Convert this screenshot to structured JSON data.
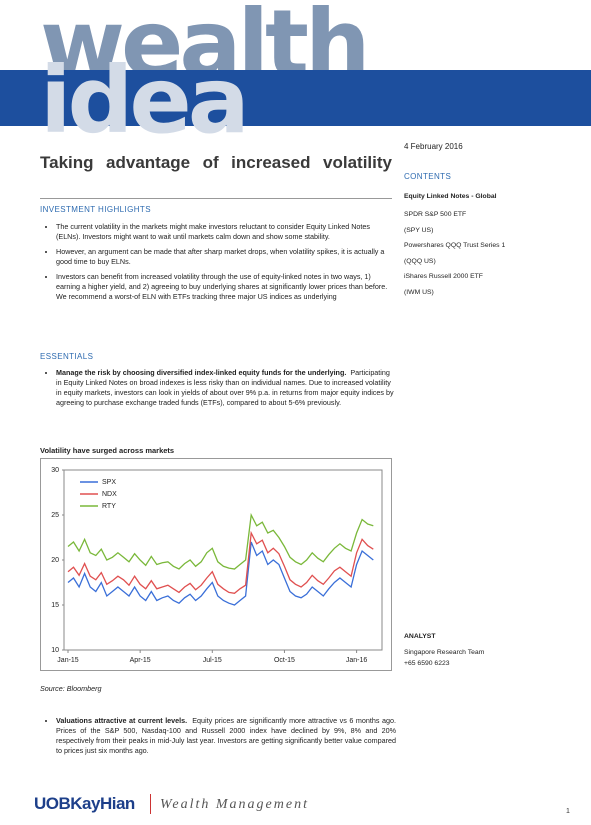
{
  "header": {
    "logo_top": "wealth",
    "logo_bottom": "idea",
    "date": "4 February 2016"
  },
  "title": "Taking advantage of increased volatility",
  "investment_highlights": {
    "heading": "INVESTMENT HIGHLIGHTS",
    "bullets": [
      "The current volatility in the markets might make investors reluctant to consider Equity Linked Notes (ELNs).  Investors might want to wait until markets calm down and show some stability.",
      "However, an argument can be made that after sharp market drops, when volatility spikes, it is actually a good time to buy ELNs.",
      "Investors can benefit from increased volatility through the use of equity-linked notes in two ways, 1) earning a higher yield, and 2) agreeing to buy underlying shares at significantly lower prices than before. We recommend a worst-of ELN with ETFs tracking three major US indices as underlying"
    ]
  },
  "essentials": {
    "heading": "ESSENTIALS",
    "items": [
      {
        "bold": "Manage the risk by choosing diversified index-linked equity funds for the underlying.",
        "text": "Participating in Equity Linked Notes on broad indexes is less risky than on individual names. Due to increased volatility in equity markets, investors can look in yields of about over 9% p.a. in returns from major equity indices by agreeing to purchase exchange traded funds (ETFs), compared to about 5-6% previously."
      },
      {
        "bold": "Valuations attractive at current levels.",
        "text": "Equity prices are significantly more attractive vs 6 months ago. Prices of the S&P 500, Nasdaq-100 and Russell 2000 index have declined by 9%, 8% and 20% respectively from their peaks in mid-July last year. Investors are getting significantly better value compared to prices just six months ago."
      }
    ]
  },
  "chart_data": {
    "type": "line",
    "title": "Volatility have surged across markets",
    "source": "Source: Bloomberg",
    "categories": [
      "Jan-15",
      null,
      null,
      null,
      null,
      null,
      null,
      null,
      null,
      null,
      null,
      null,
      null,
      "Apr-15",
      null,
      null,
      null,
      null,
      null,
      null,
      null,
      null,
      null,
      null,
      null,
      null,
      "Jul-15",
      null,
      null,
      null,
      null,
      null,
      null,
      null,
      null,
      null,
      null,
      null,
      null,
      "Oct-15",
      null,
      null,
      null,
      null,
      null,
      null,
      null,
      null,
      null,
      null,
      null,
      null,
      "Jan-16",
      null,
      null,
      null
    ],
    "ylim": [
      10,
      30
    ],
    "yticks": [
      10,
      15,
      20,
      25,
      30
    ],
    "grid": false,
    "legend": "upper-left",
    "series": [
      {
        "name": "SPX",
        "color": "#3a6fd8",
        "values": [
          17.5,
          18,
          17,
          18.5,
          17,
          16.5,
          17.5,
          16,
          16.5,
          17,
          16.5,
          16,
          17,
          16,
          15.5,
          16.5,
          15.5,
          15.8,
          16,
          15.5,
          15.2,
          15.8,
          16.2,
          15.5,
          16,
          16.8,
          17.5,
          16,
          15.5,
          15.2,
          15,
          15.5,
          16,
          22,
          20.5,
          21,
          19.5,
          20,
          19.5,
          18,
          16.5,
          16,
          15.8,
          16.2,
          17,
          16.5,
          16,
          16.8,
          17.5,
          18,
          17.5,
          17,
          19.5,
          21,
          20.5,
          20
        ]
      },
      {
        "name": "NDX",
        "color": "#e05050",
        "values": [
          18.7,
          19.2,
          18.3,
          19.6,
          18.2,
          17.8,
          18.6,
          17.3,
          17.7,
          18.2,
          17.8,
          17.2,
          18.2,
          17.3,
          16.8,
          17.7,
          16.8,
          17,
          17.2,
          16.8,
          16.4,
          17,
          17.4,
          16.7,
          17.2,
          18,
          18.7,
          17.3,
          16.8,
          16.4,
          16.3,
          16.8,
          17.2,
          23,
          21.8,
          22.2,
          20.8,
          21.3,
          20.7,
          19.3,
          17.8,
          17.3,
          17,
          17.5,
          18.3,
          17.7,
          17.3,
          18,
          18.8,
          19.2,
          18.7,
          18.2,
          20.8,
          22.3,
          21.6,
          21.2
        ]
      },
      {
        "name": "RTY",
        "color": "#7ab83a",
        "values": [
          21.5,
          22,
          21,
          22.3,
          20.8,
          20.5,
          21.2,
          20,
          20.3,
          20.8,
          20.3,
          19.8,
          20.7,
          20,
          19.4,
          20.4,
          19.5,
          19.7,
          19.8,
          19.3,
          19,
          19.6,
          20,
          19.3,
          19.8,
          20.8,
          21.3,
          19.8,
          19.3,
          19.1,
          19,
          19.5,
          20,
          25,
          23.8,
          24.2,
          23,
          23.3,
          22.5,
          21.5,
          20.3,
          19.8,
          19.5,
          20,
          20.8,
          20.2,
          19.8,
          20.6,
          21.3,
          21.8,
          21.3,
          21,
          23,
          24.5,
          24,
          23.8
        ]
      }
    ]
  },
  "sidebar": {
    "contents_heading": "CONTENTS",
    "contents_title": "Equity Linked Notes - Global",
    "items": [
      "SPDR S&P 500 ETF",
      "(SPY US)",
      "Powershares QQQ Trust Series 1",
      "(QQQ US)",
      "iShares Russell 2000 ETF",
      "(IWM US)"
    ],
    "analyst_heading": "ANALYST",
    "analyst_lines": [
      "Singapore Research Team",
      "+65 6590 6223"
    ]
  },
  "footer": {
    "brand": "UOBKayHian",
    "division": "Wealth Management",
    "page": "1"
  }
}
